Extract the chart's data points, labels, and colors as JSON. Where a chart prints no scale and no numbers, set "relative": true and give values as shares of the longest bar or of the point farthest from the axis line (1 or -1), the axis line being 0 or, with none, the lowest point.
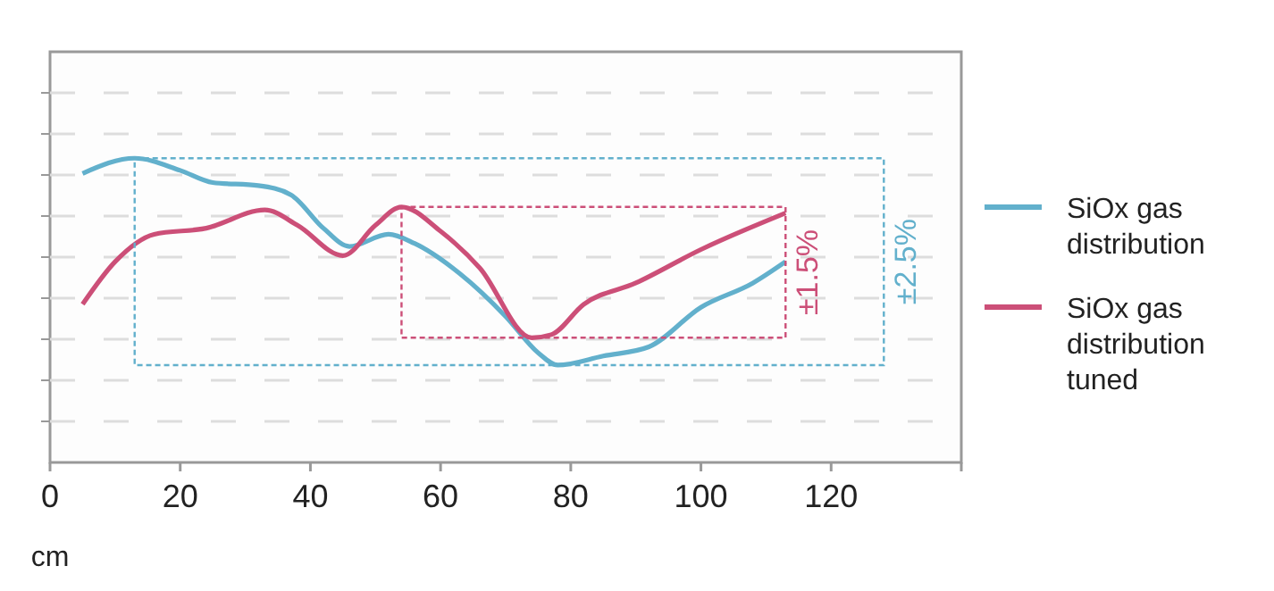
{
  "chart_data": {
    "type": "line",
    "xlabel": "cm",
    "relative": true,
    "xlim": [
      0,
      140
    ],
    "xticks": [
      0,
      20,
      40,
      60,
      80,
      100,
      120,
      {
        "value": 140,
        "label": null
      }
    ],
    "grid": "y",
    "legend": "right",
    "line_style": "solid",
    "marker": "none",
    "series": [
      {
        "name": "SiOx gas distribution",
        "color": "#62b0cc",
        "x": [
          5,
          13,
          20,
          25,
          32,
          37,
          42,
          46,
          52,
          56,
          63,
          70,
          75,
          78,
          85,
          92,
          100,
          108,
          113
        ],
        "values": [
          0.95,
          1,
          0.96,
          0.92,
          0.91,
          0.88,
          0.77,
          0.71,
          0.75,
          0.72,
          0.62,
          0.48,
          0.36,
          0.32,
          0.35,
          0.38,
          0.51,
          0.59,
          0.66
        ]
      },
      {
        "name": "SiOx gas distribution tuned",
        "color": "#cc4f78",
        "x": [
          5,
          10,
          16,
          24,
          33,
          38,
          45,
          50,
          54,
          60,
          66,
          74,
          77,
          82,
          90,
          100,
          113
        ],
        "values": [
          0.52,
          0.66,
          0.75,
          0.77,
          0.83,
          0.78,
          0.68,
          0.78,
          0.84,
          0.76,
          0.64,
          0.41,
          0.42,
          0.52,
          0.59,
          0.7,
          0.82
        ]
      }
    ],
    "annotations": [
      "±2.5%",
      "±1.5%"
    ]
  }
}
